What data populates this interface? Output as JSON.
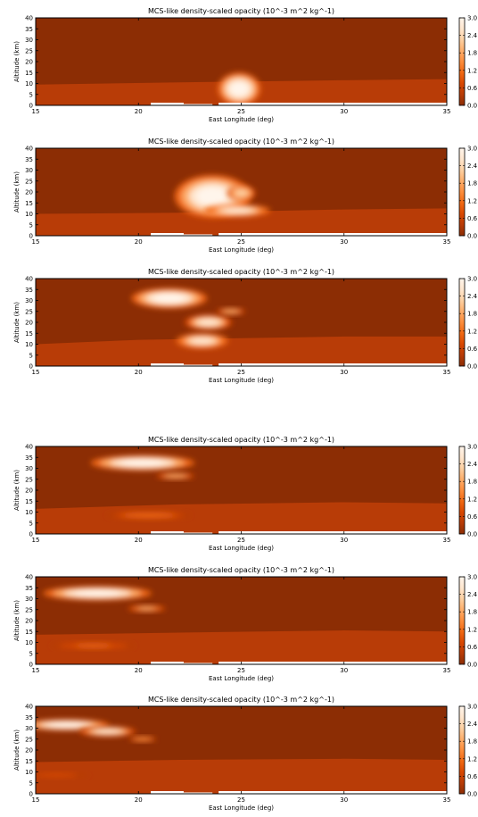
{
  "figure": {
    "colors": {
      "background_low": "#8c2d04",
      "surface_band": "#b83c07",
      "cloud_mid": "#e8742a",
      "cloud_high": "#fdd0a2",
      "cloud_core": "#fff5eb",
      "ground_gap": "#ffffff",
      "colormap": [
        "#8c2d04",
        "#b83c07",
        "#d94801",
        "#f16913",
        "#fd8d3c",
        "#fdae6b",
        "#fdd0a2",
        "#fee6ce",
        "#fff5eb"
      ]
    },
    "colorbar_ticks": [
      "0.0",
      "0.6",
      "1.2",
      "1.8",
      "2.4",
      "3.0"
    ]
  },
  "chart_data": [
    {
      "type": "heatmap",
      "title": "MCS-like density-scaled opacity (10^-3 m^2 kg^-1)",
      "xlabel": "East Longitude (deg)",
      "ylabel": "Altitude (km)",
      "xlim": [
        15,
        35
      ],
      "ylim": [
        0,
        40
      ],
      "xticks": [
        "15",
        "20",
        "25",
        "30",
        "35"
      ],
      "yticks": [
        "0",
        "5",
        "10",
        "15",
        "20",
        "25",
        "30",
        "35",
        "40"
      ],
      "colorbar_range": [
        0.0,
        3.0
      ],
      "surface_layer_top_km": [
        [
          15,
          9.5
        ],
        [
          22,
          10.5
        ],
        [
          30,
          11.5
        ],
        [
          35,
          12
        ]
      ],
      "cloud_features": [
        {
          "lon_center": 24.9,
          "alt_center": 7.5,
          "lon_halfwidth": 0.9,
          "alt_halfwidth": 6.5,
          "peak": 3.0
        }
      ]
    },
    {
      "type": "heatmap",
      "title": "MCS-like density-scaled opacity (10^-3 m^2 kg^-1)",
      "xlabel": "East Longitude (deg)",
      "ylabel": "Altitude (km)",
      "xlim": [
        15,
        35
      ],
      "ylim": [
        0,
        40
      ],
      "xticks": [
        "15",
        "20",
        "25",
        "30",
        "35"
      ],
      "yticks": [
        "0",
        "5",
        "10",
        "15",
        "20",
        "25",
        "30",
        "35",
        "40"
      ],
      "colorbar_range": [
        0.0,
        3.0
      ],
      "surface_layer_top_km": [
        [
          15,
          10
        ],
        [
          22,
          10.5
        ],
        [
          30,
          12
        ],
        [
          35,
          12.5
        ]
      ],
      "cloud_features": [
        {
          "lon_center": 23.6,
          "alt_center": 18,
          "lon_halfwidth": 1.6,
          "alt_halfwidth": 8.5,
          "peak": 3.0
        },
        {
          "lon_center": 24.8,
          "alt_center": 11.5,
          "lon_halfwidth": 1.4,
          "alt_halfwidth": 2.5,
          "peak": 2.8
        },
        {
          "lon_center": 25.0,
          "alt_center": 19.5,
          "lon_halfwidth": 0.6,
          "alt_halfwidth": 3,
          "peak": 2.4
        }
      ]
    },
    {
      "type": "heatmap",
      "title": "MCS-like density-scaled opacity (10^-3 m^2 kg^-1)",
      "xlabel": "East Longitude (deg)",
      "ylabel": "Altitude (km)",
      "xlim": [
        15,
        35
      ],
      "ylim": [
        0,
        40
      ],
      "xticks": [
        "15",
        "20",
        "25",
        "30",
        "35"
      ],
      "yticks": [
        "0",
        "5",
        "10",
        "15",
        "20",
        "25",
        "30",
        "35",
        "40"
      ],
      "colorbar_range": [
        0.0,
        3.0
      ],
      "surface_layer_top_km": [
        [
          15,
          10
        ],
        [
          20,
          12
        ],
        [
          30,
          13.5
        ],
        [
          35,
          13.5
        ]
      ],
      "cloud_features": [
        {
          "lon_center": 21.5,
          "alt_center": 31,
          "lon_halfwidth": 1.6,
          "alt_halfwidth": 4,
          "peak": 3.0
        },
        {
          "lon_center": 23.4,
          "alt_center": 20,
          "lon_halfwidth": 1.0,
          "alt_halfwidth": 3,
          "peak": 2.6
        },
        {
          "lon_center": 23.1,
          "alt_center": 11.5,
          "lon_halfwidth": 1.1,
          "alt_halfwidth": 3,
          "peak": 2.8
        },
        {
          "lon_center": 24.5,
          "alt_center": 25,
          "lon_halfwidth": 0.6,
          "alt_halfwidth": 1.2,
          "peak": 2.0
        }
      ]
    },
    {
      "type": "heatmap",
      "title": "MCS-like density-scaled opacity (10^-3 m^2 kg^-1)",
      "xlabel": "East Longitude (deg)",
      "ylabel": "Altitude (km)",
      "xlim": [
        15,
        35
      ],
      "ylim": [
        0,
        40
      ],
      "xticks": [
        "15",
        "20",
        "25",
        "30",
        "35"
      ],
      "yticks": [
        "0",
        "5",
        "10",
        "15",
        "20",
        "25",
        "30",
        "35",
        "40"
      ],
      "colorbar_range": [
        0.0,
        3.0
      ],
      "surface_layer_top_km": [
        [
          15,
          11.5
        ],
        [
          22,
          13.5
        ],
        [
          30,
          14.5
        ],
        [
          35,
          14
        ]
      ],
      "cloud_features": [
        {
          "lon_center": 20.2,
          "alt_center": 32.5,
          "lon_halfwidth": 2.2,
          "alt_halfwidth": 3,
          "peak": 3.0
        },
        {
          "lon_center": 21.8,
          "alt_center": 26.5,
          "lon_halfwidth": 0.8,
          "alt_halfwidth": 1.2,
          "peak": 2.0
        },
        {
          "lon_center": 20.5,
          "alt_center": 8.5,
          "lon_halfwidth": 1.8,
          "alt_halfwidth": 1.4,
          "peak": 1.2
        }
      ]
    },
    {
      "type": "heatmap",
      "title": "MCS-like density-scaled opacity (10^-3 m^2 kg^-1)",
      "xlabel": "East Longitude (deg)",
      "ylabel": "Altitude (km)",
      "xlim": [
        15,
        35
      ],
      "ylim": [
        0,
        40
      ],
      "xticks": [
        "15",
        "20",
        "25",
        "30",
        "35"
      ],
      "yticks": [
        "0",
        "5",
        "10",
        "15",
        "20",
        "25",
        "30",
        "35",
        "40"
      ],
      "colorbar_range": [
        0.0,
        3.0
      ],
      "surface_layer_top_km": [
        [
          15,
          13.5
        ],
        [
          22,
          14.5
        ],
        [
          30,
          15.5
        ],
        [
          35,
          15
        ]
      ],
      "cloud_features": [
        {
          "lon_center": 18.0,
          "alt_center": 32.5,
          "lon_halfwidth": 2.3,
          "alt_halfwidth": 2.8,
          "peak": 3.0
        },
        {
          "lon_center": 20.4,
          "alt_center": 25.5,
          "lon_halfwidth": 0.8,
          "alt_halfwidth": 1.2,
          "peak": 1.8
        },
        {
          "lon_center": 17.8,
          "alt_center": 8.5,
          "lon_halfwidth": 1.8,
          "alt_halfwidth": 1.2,
          "peak": 1.0
        }
      ]
    },
    {
      "type": "heatmap",
      "title": "MCS-like density-scaled opacity (10^-3 m^2 kg^-1)",
      "xlabel": "East Longitude (deg)",
      "ylabel": "Altitude (km)",
      "xlim": [
        15,
        35
      ],
      "ylim": [
        0,
        40
      ],
      "xticks": [
        "15",
        "20",
        "25",
        "30",
        "35"
      ],
      "yticks": [
        "0",
        "5",
        "10",
        "15",
        "20",
        "25",
        "30",
        "35",
        "40"
      ],
      "colorbar_range": [
        0.0,
        3.0
      ],
      "surface_layer_top_km": [
        [
          15,
          14.5
        ],
        [
          22,
          15.5
        ],
        [
          30,
          16
        ],
        [
          35,
          15.5
        ]
      ],
      "cloud_features": [
        {
          "lon_center": 16.5,
          "alt_center": 31.5,
          "lon_halfwidth": 1.8,
          "alt_halfwidth": 2.2,
          "peak": 3.0
        },
        {
          "lon_center": 18.5,
          "alt_center": 28.5,
          "lon_halfwidth": 1.2,
          "alt_halfwidth": 2,
          "peak": 2.6
        },
        {
          "lon_center": 20.2,
          "alt_center": 25,
          "lon_halfwidth": 0.6,
          "alt_halfwidth": 1,
          "peak": 1.6
        },
        {
          "lon_center": 16.0,
          "alt_center": 8.5,
          "lon_halfwidth": 1.4,
          "alt_halfwidth": 1,
          "peak": 0.8
        }
      ]
    }
  ]
}
